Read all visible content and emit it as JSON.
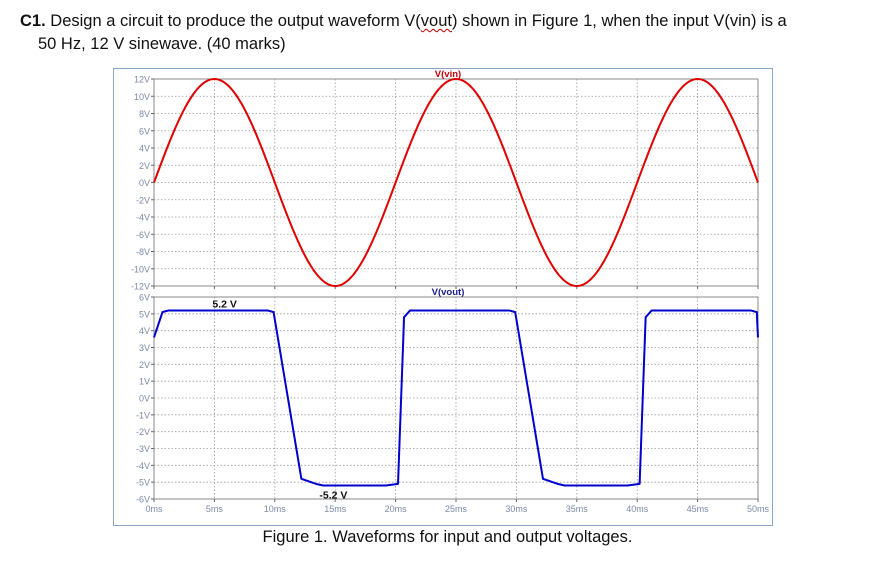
{
  "question": {
    "number": "C1.",
    "text_before": " Design a circuit to produce the output waveform V(",
    "vout_word": "vout",
    "text_middle": ") shown in Figure 1, when the input V(vin) is a",
    "text_line2": "50 Hz, 12 V sinewave. (40 marks)"
  },
  "caption": "Figure 1. Waveforms for input and output voltages.",
  "colors": {
    "vin": "#e00000",
    "vout": "#0000cc",
    "grid": "#9a9a9a",
    "axis_text": "#7a8aa6"
  },
  "chart_data": [
    {
      "type": "line",
      "title": "V(vin)",
      "xlim": [
        0,
        50
      ],
      "ylim": [
        -12,
        12
      ],
      "y_ticks": [
        12,
        10,
        8,
        6,
        4,
        2,
        0,
        -2,
        -4,
        -6,
        -8,
        -10,
        -12
      ],
      "y_tick_labels": [
        "12V",
        "10V",
        "8V",
        "6V",
        "4V",
        "2V",
        "0V",
        "-2V",
        "-4V",
        "-6V",
        "-8V",
        "-10V",
        "-12V"
      ],
      "grid": true,
      "series": [
        {
          "name": "V(vin)",
          "x": [
            0,
            2.5,
            5,
            7.5,
            10,
            12.5,
            15,
            17.5,
            20,
            22.5,
            25,
            27.5,
            30,
            32.5,
            35,
            37.5,
            40,
            42.5,
            45,
            47.5,
            50
          ],
          "y": [
            0,
            8.5,
            12,
            8.5,
            0,
            -8.5,
            -12,
            -8.5,
            0,
            8.5,
            12,
            8.5,
            0,
            -8.5,
            -12,
            -8.5,
            0,
            8.5,
            12,
            8.5,
            0
          ]
        }
      ]
    },
    {
      "type": "line",
      "title": "V(vout)",
      "xlim": [
        0,
        50
      ],
      "ylim": [
        -6,
        6
      ],
      "y_ticks": [
        6,
        5,
        4,
        3,
        2,
        1,
        0,
        -1,
        -2,
        -3,
        -4,
        -5,
        -6
      ],
      "y_tick_labels": [
        "6V",
        "5V",
        "4V",
        "3V",
        "2V",
        "1V",
        "0V",
        "-1V",
        "-2V",
        "-3V",
        "-4V",
        "-5V",
        "-6V"
      ],
      "x_ticks": [
        0,
        5,
        10,
        15,
        20,
        25,
        30,
        35,
        40,
        45,
        50
      ],
      "x_tick_labels": [
        "0ms",
        "5ms",
        "10ms",
        "15ms",
        "20ms",
        "25ms",
        "30ms",
        "35ms",
        "40ms",
        "45ms",
        "50ms"
      ],
      "grid": true,
      "annotations": [
        "5.2 V",
        "-5.2 V"
      ],
      "series": [
        {
          "name": "V(vout)",
          "x": [
            0,
            0.7,
            1.2,
            9.4,
            9.9,
            12.2,
            13.4,
            14.0,
            19.2,
            20.2,
            20.7,
            21.2,
            29.4,
            29.9,
            32.2,
            33.4,
            34.0,
            39.2,
            40.2,
            40.7,
            41.2,
            49.4,
            49.9,
            50
          ],
          "y": [
            3.6,
            5.1,
            5.2,
            5.2,
            5.1,
            -4.8,
            -5.1,
            -5.2,
            -5.2,
            -5.1,
            4.8,
            5.2,
            5.2,
            5.1,
            -4.8,
            -5.1,
            -5.2,
            -5.2,
            -5.1,
            4.8,
            5.2,
            5.2,
            5.1,
            3.6
          ]
        }
      ]
    }
  ]
}
